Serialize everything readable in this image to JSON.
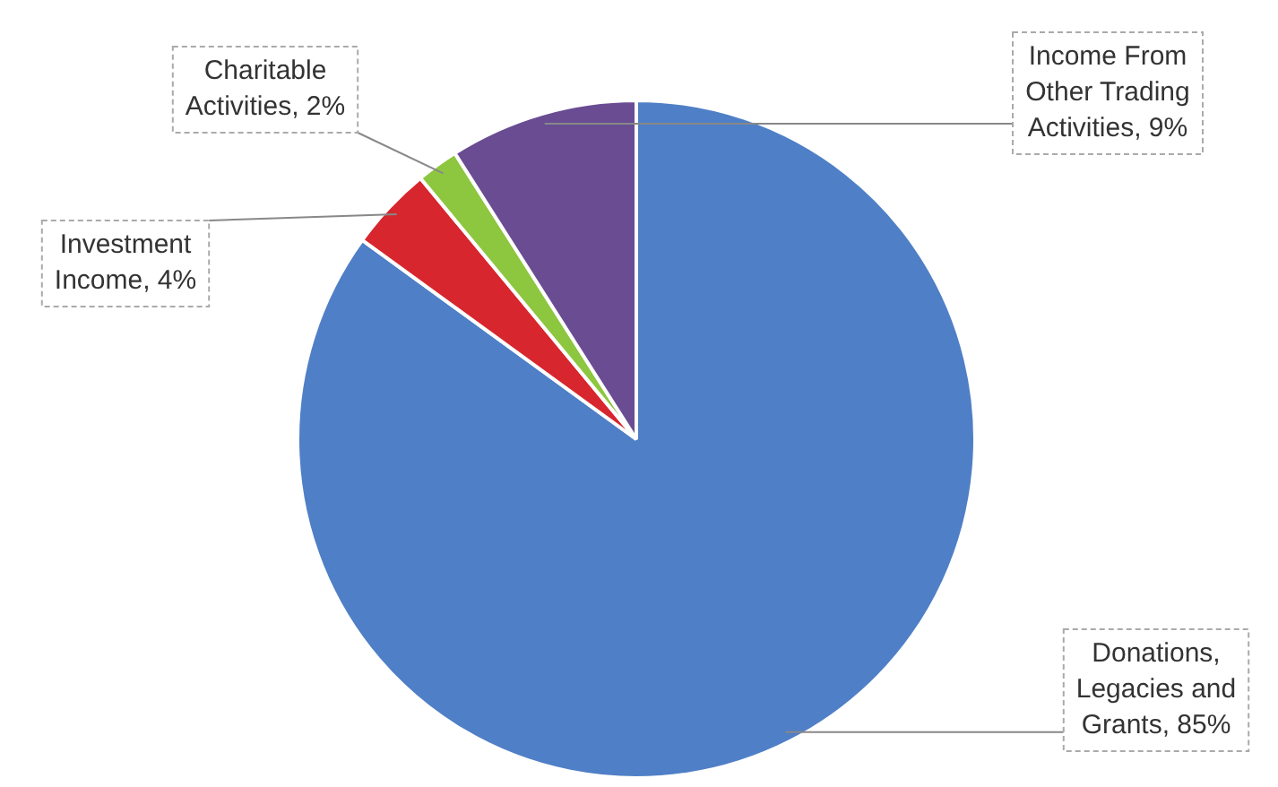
{
  "chart_data": {
    "type": "pie",
    "categories": [
      "Donations, Legacies and Grants",
      "Investment Income",
      "Charitable Activities",
      "Income From Other Trading Activities"
    ],
    "values": [
      85,
      4,
      2,
      9
    ],
    "value_labels": [
      ", 85%",
      ", 4%",
      ", 2%",
      ", 9%"
    ],
    "colors": [
      "#4f7fc6",
      "#d7262e",
      "#8dc63f",
      "#6a4c93"
    ],
    "legend": false
  }
}
